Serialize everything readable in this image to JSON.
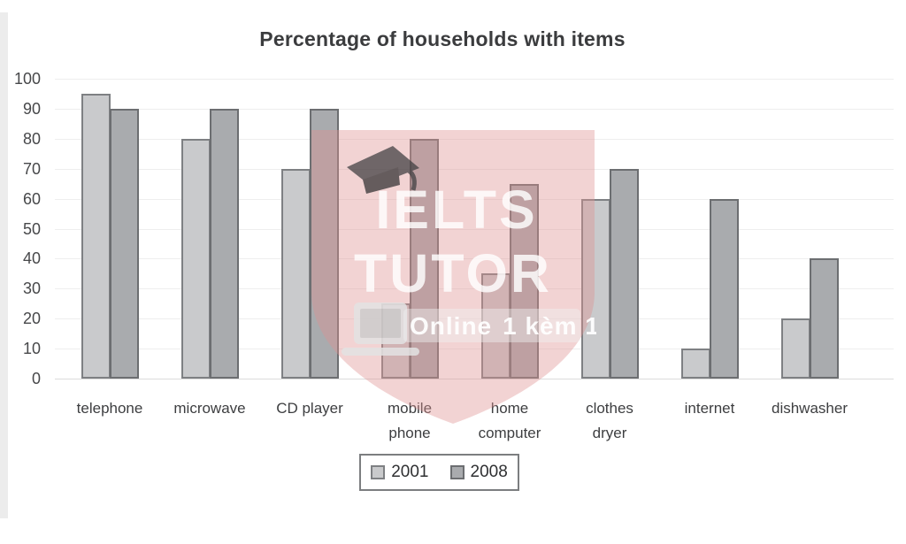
{
  "title": "Percentage of households with items",
  "legend": {
    "items": [
      {
        "label": "2001"
      },
      {
        "label": "2008"
      }
    ]
  },
  "watermark": {
    "brand_line1": "IELTS",
    "brand_line2": "TUTOR",
    "badge_bold": "Online",
    "badge_text": "1 kèm 1"
  },
  "chart_data": {
    "type": "bar",
    "title": "Percentage of households with items",
    "categories": [
      "telephone",
      "microwave",
      "CD player",
      "mobile phone",
      "home computer",
      "clothes dryer",
      "internet",
      "dishwasher"
    ],
    "tick_label_lines": [
      [
        "telephone"
      ],
      [
        "microwave"
      ],
      [
        "CD player"
      ],
      [
        "mobile",
        "phone"
      ],
      [
        "home",
        "computer"
      ],
      [
        "clothes",
        "dryer"
      ],
      [
        "internet"
      ],
      [
        "dishwasher"
      ]
    ],
    "series": [
      {
        "name": "2001",
        "values": [
          95,
          80,
          70,
          25,
          35,
          60,
          10,
          20
        ],
        "color": "#c9cacc",
        "border_color": "#7e8083"
      },
      {
        "name": "2008",
        "values": [
          90,
          90,
          90,
          80,
          65,
          70,
          60,
          40
        ],
        "color": "#a9abae",
        "border_color": "#6c6e71"
      }
    ],
    "xlabel": "",
    "ylabel": "",
    "ylim": [
      0,
      100
    ],
    "yticks": [
      0,
      10,
      20,
      30,
      40,
      50,
      60,
      70,
      80,
      90,
      100
    ],
    "grid": true,
    "legend_position": "bottom"
  },
  "colors": {
    "bar_2001": "#c9cacc",
    "bar_2008": "#a9abae",
    "watermark_pink": "rgba(222,146,146,0.40)",
    "grid": "#eeeeee",
    "title_text": "#3b3c3e"
  }
}
